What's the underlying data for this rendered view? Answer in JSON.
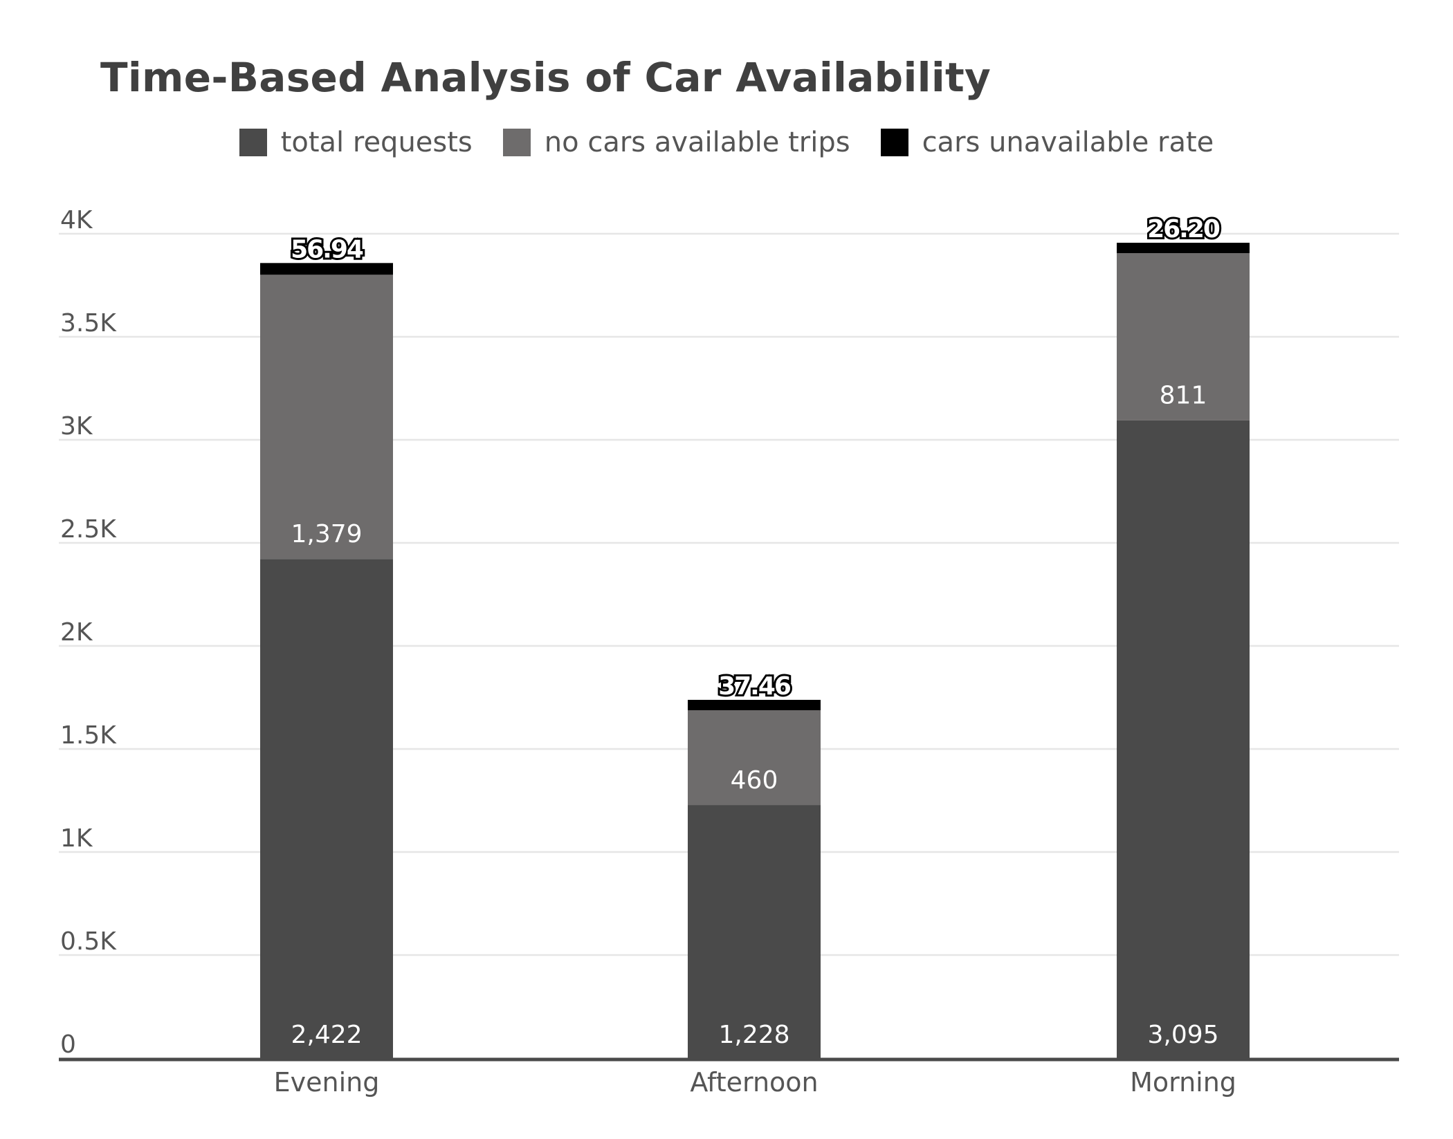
{
  "chart_data": {
    "type": "bar",
    "stacked": true,
    "title": "Time-Based Analysis of Car Availability",
    "xlabel": "",
    "ylabel": "",
    "categories": [
      "Evening",
      "Afternoon",
      "Morning"
    ],
    "series": [
      {
        "name": "total requests",
        "values": [
          2422,
          1228,
          3095
        ],
        "labels": [
          "2,422",
          "1,228",
          "3,095"
        ],
        "color": "#4a4a4a"
      },
      {
        "name": "no cars available trips",
        "values": [
          1379,
          460,
          811
        ],
        "labels": [
          "1,379",
          "460",
          "811"
        ],
        "color": "#6e6c6c"
      },
      {
        "name": "cars unavailable rate",
        "values": [
          56.94,
          37.46,
          26.2
        ],
        "labels": [
          "56.94",
          "37.46",
          "26.20"
        ],
        "color": "#000000"
      }
    ],
    "ylim": [
      0,
      4000
    ],
    "yticks": [
      0,
      500,
      1000,
      1500,
      2000,
      2500,
      3000,
      3500,
      4000
    ],
    "ytick_labels": [
      "0",
      "0.5K",
      "1K",
      "1.5K",
      "2K",
      "2.5K",
      "3K",
      "3.5K",
      "4K"
    ],
    "grid": true,
    "legend_position": "top"
  }
}
